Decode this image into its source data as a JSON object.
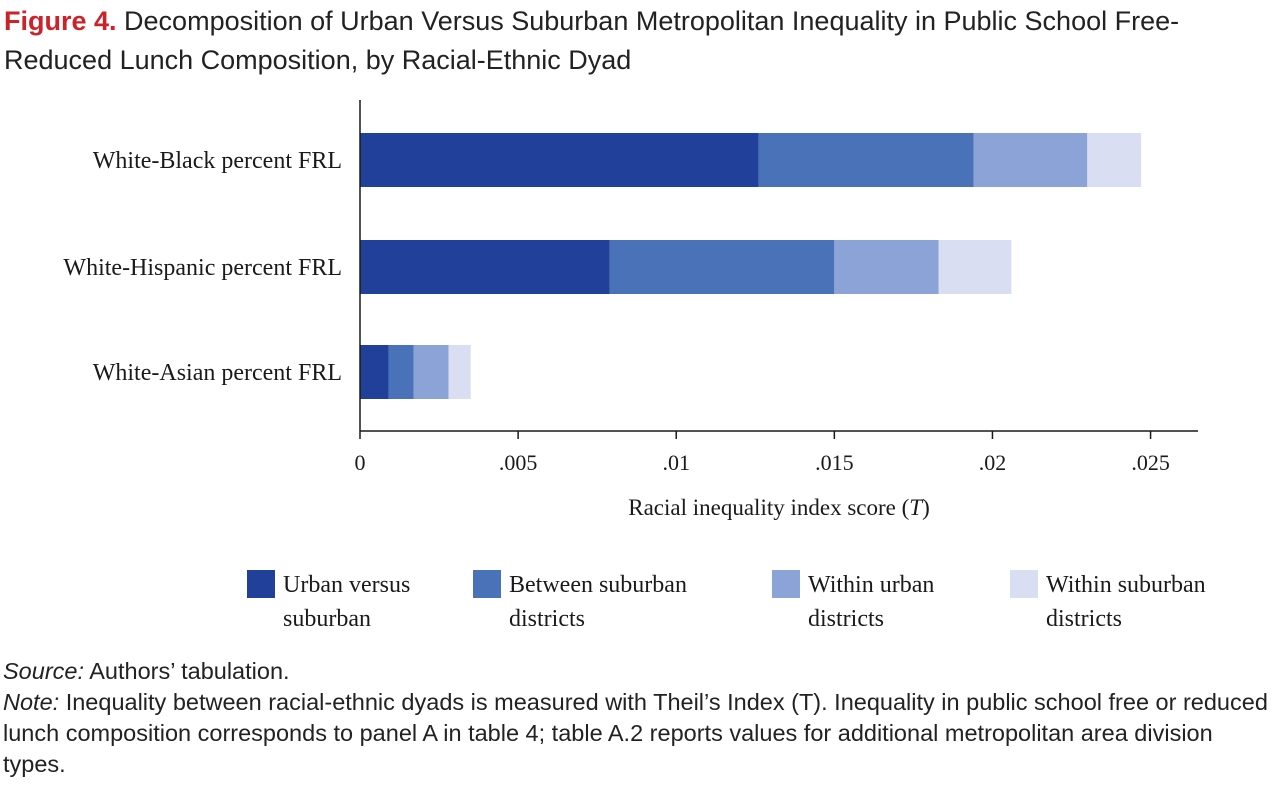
{
  "figure": {
    "label": "Figure 4.",
    "title": "Decomposition of Urban Versus Suburban Metropolitan Inequality in Public School Free-Reduced Lunch Composition, by Racial-Ethnic Dyad"
  },
  "chart_data": {
    "type": "bar",
    "orientation": "horizontal",
    "stacked": true,
    "categories": [
      "White-Black percent FRL",
      "White-Hispanic percent FRL",
      "White-Asian percent FRL"
    ],
    "series": [
      {
        "name": "Urban versus suburban",
        "color": "#21409a",
        "values": [
          0.0126,
          0.0079,
          0.0009
        ]
      },
      {
        "name": "Between suburban districts",
        "color": "#4a72b8",
        "values": [
          0.0068,
          0.0071,
          0.0008
        ]
      },
      {
        "name": "Within urban districts",
        "color": "#8ba3d6",
        "values": [
          0.0036,
          0.0033,
          0.0011
        ]
      },
      {
        "name": "Within suburban districts",
        "color": "#d9def2",
        "values": [
          0.0017,
          0.0023,
          0.0007
        ]
      }
    ],
    "xlabel": "Racial inequality index score (T)",
    "xlim": [
      0,
      0.0265
    ],
    "xticks": [
      0,
      0.005,
      0.01,
      0.015,
      0.02,
      0.025
    ],
    "xtick_labels": [
      "0",
      ".005",
      ".01",
      ".015",
      ".02",
      ".025"
    ],
    "grid": false,
    "legend_position": "bottom"
  },
  "legend": {
    "items": [
      {
        "line1": "Urban versus",
        "line2": "suburban"
      },
      {
        "line1": "Between suburban",
        "line2": "districts"
      },
      {
        "line1": "Within urban",
        "line2": "districts"
      },
      {
        "line1": "Within suburban",
        "line2": "districts"
      }
    ]
  },
  "notes": {
    "source_label": "Source:",
    "source_text": "Authors’ tabulation.",
    "note_label": "Note:",
    "note_text": "Inequality between racial-ethnic dyads is measured with Theil’s Index (T). Inequality in public school free or reduced lunch composition corresponds to panel A in table 4; table A.2 reports values for additional metropolitan area division types."
  }
}
